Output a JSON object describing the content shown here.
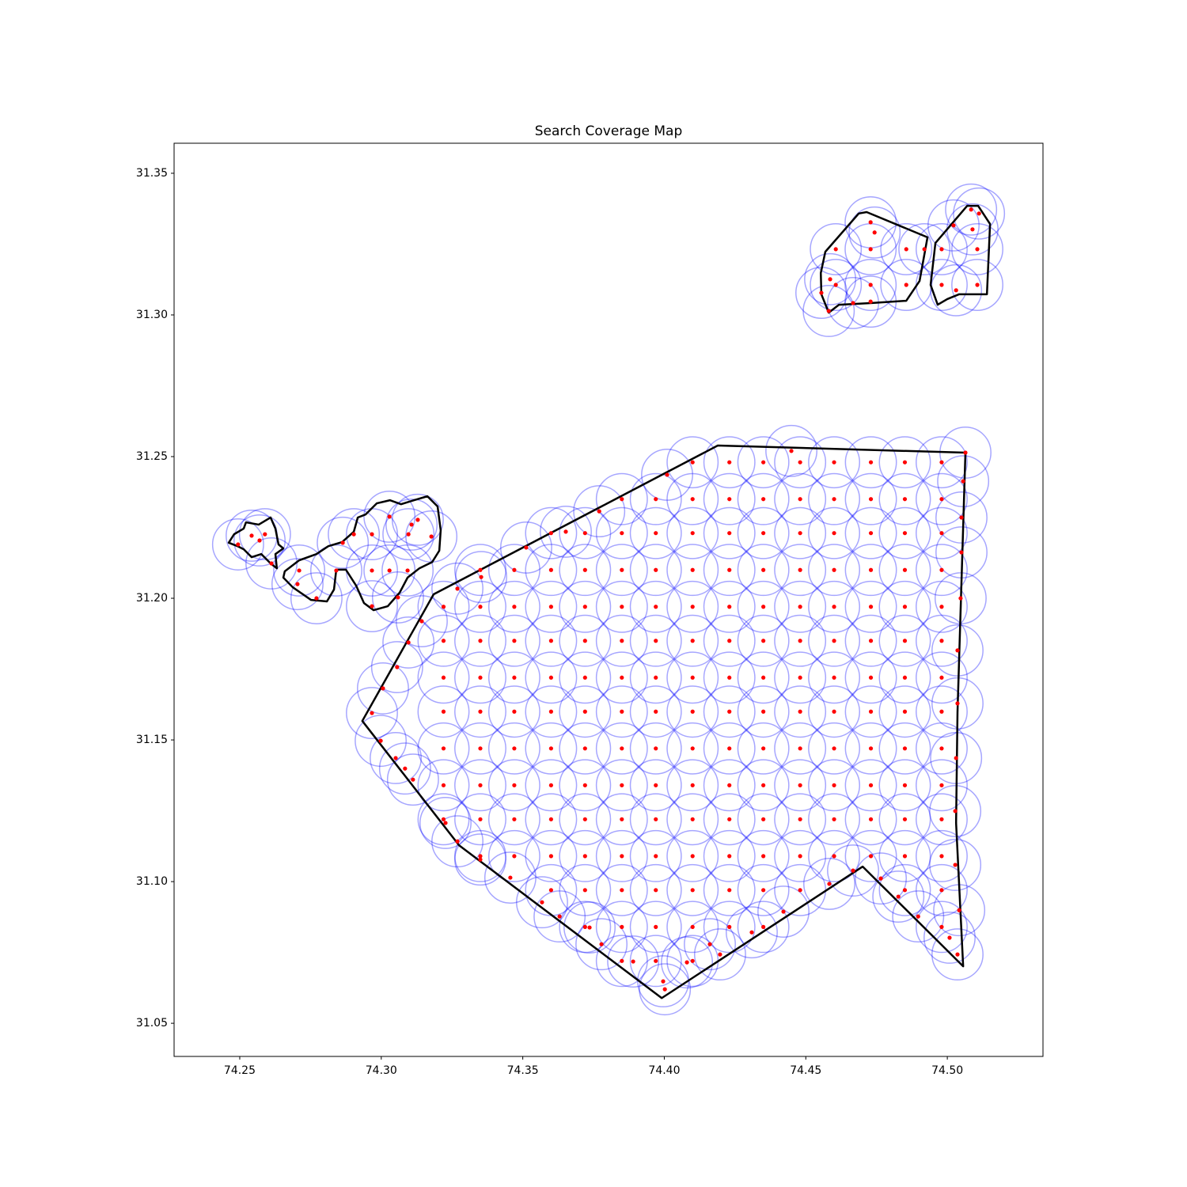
{
  "chart_data": {
    "type": "scatter",
    "title": "Search Coverage Map",
    "xlim": [
      74.2268,
      74.5338
    ],
    "ylim": [
      31.0383,
      31.3606
    ],
    "xticks": [
      74.25,
      {
        "value": 74.3,
        "label": "74.30"
      },
      74.35,
      {
        "value": 74.4,
        "label": "74.40"
      },
      74.45,
      {
        "value": 74.5,
        "label": "74.50"
      }
    ],
    "yticks": [
      31.05,
      {
        "value": 31.1,
        "label": "31.10"
      },
      31.15,
      {
        "value": 31.2,
        "label": "31.20"
      },
      31.25,
      {
        "value": 31.3,
        "label": "31.30"
      },
      31.35
    ],
    "color": "red",
    "coverage_color": "blue",
    "coverage_radius": 0.009,
    "boundary_color": "black",
    "grid": false,
    "boundaries": [
      [
        [
          74.3185,
          31.2014
        ],
        [
          74.4189,
          31.2539
        ],
        [
          74.5064,
          31.2514
        ],
        [
          74.5036,
          31.1598
        ],
        [
          74.5031,
          31.1207
        ],
        [
          74.5056,
          31.0701
        ],
        [
          74.4701,
          31.1053
        ],
        [
          74.3991,
          31.0589
        ],
        [
          74.3275,
          31.1128
        ],
        [
          74.2933,
          31.1567
        ]
      ],
      [
        [
          74.2461,
          31.2196
        ],
        [
          74.248,
          31.2226
        ],
        [
          74.2514,
          31.2246
        ],
        [
          74.2522,
          31.2268
        ],
        [
          74.2567,
          31.226
        ],
        [
          74.2609,
          31.2285
        ],
        [
          74.2626,
          31.2246
        ],
        [
          74.2637,
          31.219
        ],
        [
          74.2654,
          31.2176
        ],
        [
          74.2626,
          31.2156
        ],
        [
          74.2631,
          31.2106
        ],
        [
          74.2609,
          31.2123
        ],
        [
          74.2576,
          31.2156
        ],
        [
          74.2542,
          31.2145
        ],
        [
          74.2514,
          31.2173
        ],
        [
          74.2492,
          31.2184
        ]
      ],
      [
        [
          74.2659,
          31.2095
        ],
        [
          74.271,
          31.2134
        ],
        [
          74.2771,
          31.2156
        ],
        [
          74.2813,
          31.2184
        ],
        [
          74.2861,
          31.2198
        ],
        [
          74.2903,
          31.2235
        ],
        [
          74.2917,
          31.2285
        ],
        [
          74.2945,
          31.2296
        ],
        [
          74.2984,
          31.2335
        ],
        [
          74.3031,
          31.2346
        ],
        [
          74.307,
          31.2332
        ],
        [
          74.3115,
          31.2346
        ],
        [
          74.3163,
          31.236
        ],
        [
          74.3199,
          31.2324
        ],
        [
          74.321,
          31.224
        ],
        [
          74.3205,
          31.2168
        ],
        [
          74.318,
          31.2128
        ],
        [
          74.3135,
          31.2106
        ],
        [
          74.3093,
          31.2073
        ],
        [
          74.3065,
          31.202
        ],
        [
          74.3023,
          31.1972
        ],
        [
          74.2973,
          31.1958
        ],
        [
          74.2939,
          31.1983
        ],
        [
          74.2911,
          31.2045
        ],
        [
          74.2875,
          31.2101
        ],
        [
          74.2841,
          31.2101
        ],
        [
          74.2833,
          31.2031
        ],
        [
          74.2808,
          31.1989
        ],
        [
          74.2752,
          31.1994
        ],
        [
          74.2687,
          31.2039
        ],
        [
          74.2654,
          31.2073
        ]
      ],
      [
        [
          74.4569,
          31.3223
        ],
        [
          74.4687,
          31.3358
        ],
        [
          74.4715,
          31.3363
        ],
        [
          74.493,
          31.3274
        ],
        [
          74.4902,
          31.312
        ],
        [
          74.4855,
          31.305
        ],
        [
          74.4729,
          31.3042
        ],
        [
          74.4617,
          31.3036
        ],
        [
          74.4581,
          31.3008
        ],
        [
          74.4555,
          31.3073
        ],
        [
          74.4553,
          31.3148
        ]
      ],
      [
        [
          74.4958,
          31.3254
        ],
        [
          74.507,
          31.3385
        ],
        [
          74.5109,
          31.3385
        ],
        [
          74.5151,
          31.3321
        ],
        [
          74.514,
          31.3073
        ],
        [
          74.5042,
          31.3073
        ],
        [
          74.5,
          31.3056
        ],
        [
          74.4966,
          31.3036
        ],
        [
          74.4941,
          31.3106
        ]
      ]
    ],
    "points": [
      [
        74.41,
        31.248
      ],
      [
        74.423,
        31.248
      ],
      [
        74.435,
        31.248
      ],
      [
        74.448,
        31.248
      ],
      [
        74.46,
        31.248
      ],
      [
        74.473,
        31.248
      ],
      [
        74.485,
        31.248
      ],
      [
        74.498,
        31.248
      ],
      [
        74.385,
        31.235
      ],
      [
        74.397,
        31.235
      ],
      [
        74.41,
        31.235
      ],
      [
        74.423,
        31.235
      ],
      [
        74.435,
        31.235
      ],
      [
        74.448,
        31.235
      ],
      [
        74.46,
        31.235
      ],
      [
        74.473,
        31.235
      ],
      [
        74.485,
        31.235
      ],
      [
        74.498,
        31.235
      ],
      [
        74.36,
        31.223
      ],
      [
        74.372,
        31.223
      ],
      [
        74.385,
        31.223
      ],
      [
        74.397,
        31.223
      ],
      [
        74.41,
        31.223
      ],
      [
        74.423,
        31.223
      ],
      [
        74.435,
        31.223
      ],
      [
        74.448,
        31.223
      ],
      [
        74.46,
        31.223
      ],
      [
        74.473,
        31.223
      ],
      [
        74.485,
        31.223
      ],
      [
        74.498,
        31.223
      ],
      [
        74.335,
        31.21
      ],
      [
        74.347,
        31.21
      ],
      [
        74.36,
        31.21
      ],
      [
        74.372,
        31.21
      ],
      [
        74.385,
        31.21
      ],
      [
        74.397,
        31.21
      ],
      [
        74.41,
        31.21
      ],
      [
        74.423,
        31.21
      ],
      [
        74.435,
        31.21
      ],
      [
        74.448,
        31.21
      ],
      [
        74.46,
        31.21
      ],
      [
        74.473,
        31.21
      ],
      [
        74.485,
        31.21
      ],
      [
        74.498,
        31.21
      ],
      [
        74.322,
        31.197
      ],
      [
        74.335,
        31.197
      ],
      [
        74.347,
        31.197
      ],
      [
        74.36,
        31.197
      ],
      [
        74.372,
        31.197
      ],
      [
        74.385,
        31.197
      ],
      [
        74.397,
        31.197
      ],
      [
        74.41,
        31.197
      ],
      [
        74.423,
        31.197
      ],
      [
        74.435,
        31.197
      ],
      [
        74.448,
        31.197
      ],
      [
        74.46,
        31.197
      ],
      [
        74.473,
        31.197
      ],
      [
        74.485,
        31.197
      ],
      [
        74.498,
        31.197
      ],
      [
        74.322,
        31.185
      ],
      [
        74.335,
        31.185
      ],
      [
        74.347,
        31.185
      ],
      [
        74.36,
        31.185
      ],
      [
        74.372,
        31.185
      ],
      [
        74.385,
        31.185
      ],
      [
        74.397,
        31.185
      ],
      [
        74.41,
        31.185
      ],
      [
        74.423,
        31.185
      ],
      [
        74.435,
        31.185
      ],
      [
        74.448,
        31.185
      ],
      [
        74.46,
        31.185
      ],
      [
        74.473,
        31.185
      ],
      [
        74.485,
        31.185
      ],
      [
        74.498,
        31.185
      ],
      [
        74.322,
        31.172
      ],
      [
        74.335,
        31.172
      ],
      [
        74.347,
        31.172
      ],
      [
        74.36,
        31.172
      ],
      [
        74.372,
        31.172
      ],
      [
        74.385,
        31.172
      ],
      [
        74.397,
        31.172
      ],
      [
        74.41,
        31.172
      ],
      [
        74.423,
        31.172
      ],
      [
        74.435,
        31.172
      ],
      [
        74.448,
        31.172
      ],
      [
        74.46,
        31.172
      ],
      [
        74.473,
        31.172
      ],
      [
        74.485,
        31.172
      ],
      [
        74.498,
        31.172
      ],
      [
        74.322,
        31.16
      ],
      [
        74.335,
        31.16
      ],
      [
        74.347,
        31.16
      ],
      [
        74.36,
        31.16
      ],
      [
        74.372,
        31.16
      ],
      [
        74.385,
        31.16
      ],
      [
        74.397,
        31.16
      ],
      [
        74.41,
        31.16
      ],
      [
        74.423,
        31.16
      ],
      [
        74.435,
        31.16
      ],
      [
        74.448,
        31.16
      ],
      [
        74.46,
        31.16
      ],
      [
        74.473,
        31.16
      ],
      [
        74.485,
        31.16
      ],
      [
        74.498,
        31.16
      ],
      [
        74.322,
        31.147
      ],
      [
        74.335,
        31.147
      ],
      [
        74.347,
        31.147
      ],
      [
        74.36,
        31.147
      ],
      [
        74.372,
        31.147
      ],
      [
        74.385,
        31.147
      ],
      [
        74.397,
        31.147
      ],
      [
        74.41,
        31.147
      ],
      [
        74.423,
        31.147
      ],
      [
        74.435,
        31.147
      ],
      [
        74.448,
        31.147
      ],
      [
        74.46,
        31.147
      ],
      [
        74.473,
        31.147
      ],
      [
        74.485,
        31.147
      ],
      [
        74.498,
        31.147
      ],
      [
        74.322,
        31.134
      ],
      [
        74.335,
        31.134
      ],
      [
        74.347,
        31.134
      ],
      [
        74.36,
        31.134
      ],
      [
        74.372,
        31.134
      ],
      [
        74.385,
        31.134
      ],
      [
        74.397,
        31.134
      ],
      [
        74.41,
        31.134
      ],
      [
        74.423,
        31.134
      ],
      [
        74.435,
        31.134
      ],
      [
        74.448,
        31.134
      ],
      [
        74.46,
        31.134
      ],
      [
        74.473,
        31.134
      ],
      [
        74.485,
        31.134
      ],
      [
        74.498,
        31.134
      ],
      [
        74.322,
        31.122
      ],
      [
        74.335,
        31.122
      ],
      [
        74.347,
        31.122
      ],
      [
        74.36,
        31.122
      ],
      [
        74.372,
        31.122
      ],
      [
        74.385,
        31.122
      ],
      [
        74.397,
        31.122
      ],
      [
        74.41,
        31.122
      ],
      [
        74.423,
        31.122
      ],
      [
        74.435,
        31.122
      ],
      [
        74.448,
        31.122
      ],
      [
        74.46,
        31.122
      ],
      [
        74.473,
        31.122
      ],
      [
        74.485,
        31.122
      ],
      [
        74.498,
        31.122
      ],
      [
        74.335,
        31.109
      ],
      [
        74.347,
        31.109
      ],
      [
        74.36,
        31.109
      ],
      [
        74.372,
        31.109
      ],
      [
        74.385,
        31.109
      ],
      [
        74.397,
        31.109
      ],
      [
        74.41,
        31.109
      ],
      [
        74.423,
        31.109
      ],
      [
        74.435,
        31.109
      ],
      [
        74.448,
        31.109
      ],
      [
        74.46,
        31.109
      ],
      [
        74.473,
        31.109
      ],
      [
        74.485,
        31.109
      ],
      [
        74.498,
        31.109
      ],
      [
        74.36,
        31.097
      ],
      [
        74.372,
        31.097
      ],
      [
        74.385,
        31.097
      ],
      [
        74.397,
        31.097
      ],
      [
        74.41,
        31.097
      ],
      [
        74.423,
        31.097
      ],
      [
        74.435,
        31.097
      ],
      [
        74.448,
        31.097
      ],
      [
        74.485,
        31.097
      ],
      [
        74.498,
        31.097
      ],
      [
        74.372,
        31.084
      ],
      [
        74.385,
        31.084
      ],
      [
        74.397,
        31.084
      ],
      [
        74.41,
        31.084
      ],
      [
        74.423,
        31.084
      ],
      [
        74.435,
        31.084
      ],
      [
        74.498,
        31.084
      ],
      [
        74.385,
        31.072
      ],
      [
        74.397,
        31.072
      ],
      [
        74.41,
        31.072
      ],
      [
        74.3143,
        31.1919
      ],
      [
        74.3096,
        31.1844
      ],
      [
        74.3056,
        31.1757
      ],
      [
        74.3006,
        31.1682
      ],
      [
        74.2967,
        31.1595
      ],
      [
        74.2998,
        31.1497
      ],
      [
        74.3051,
        31.1436
      ],
      [
        74.3084,
        31.1399
      ],
      [
        74.3112,
        31.136
      ],
      [
        74.3227,
        31.1207
      ],
      [
        74.3269,
        31.1142
      ],
      [
        74.335,
        31.1078
      ],
      [
        74.3456,
        31.1014
      ],
      [
        74.3568,
        31.0927
      ],
      [
        74.363,
        31.0877
      ],
      [
        74.3736,
        31.0838
      ],
      [
        74.3778,
        31.0779
      ],
      [
        74.389,
        31.0718
      ],
      [
        74.3996,
        31.0648
      ],
      [
        74.4002,
        31.062
      ],
      [
        74.408,
        31.0715
      ],
      [
        74.4161,
        31.0779
      ],
      [
        74.4197,
        31.0743
      ],
      [
        74.4309,
        31.0821
      ],
      [
        74.4421,
        31.0894
      ],
      [
        74.4583,
        31.0992
      ],
      [
        74.4667,
        31.1039
      ],
      [
        74.4765,
        31.1011
      ],
      [
        74.4827,
        31.0947
      ],
      [
        74.4897,
        31.0877
      ],
      [
        74.5008,
        31.0802
      ],
      [
        74.5036,
        31.0743
      ],
      [
        74.5042,
        31.0899
      ],
      [
        74.5028,
        31.1059
      ],
      [
        74.5028,
        31.1249
      ],
      [
        74.5031,
        31.1436
      ],
      [
        74.5036,
        31.1629
      ],
      [
        74.5036,
        31.1816
      ],
      [
        74.5047,
        31.2
      ],
      [
        74.505,
        31.2162
      ],
      [
        74.505,
        31.2285
      ],
      [
        74.5056,
        31.2413
      ],
      [
        74.5064,
        31.2514
      ],
      [
        74.4449,
        31.252
      ],
      [
        74.401,
        31.2436
      ],
      [
        74.377,
        31.2307
      ],
      [
        74.3652,
        31.2235
      ],
      [
        74.3512,
        31.2179
      ],
      [
        74.3353,
        31.2075
      ],
      [
        74.3269,
        31.2034
      ],
      [
        74.2494,
        31.219
      ],
      [
        74.2542,
        31.2221
      ],
      [
        74.2589,
        31.2226
      ],
      [
        74.257,
        31.2204
      ],
      [
        74.2612,
        31.2123
      ],
      [
        74.271,
        31.2098
      ],
      [
        74.2704,
        31.205
      ],
      [
        74.2771,
        31.2
      ],
      [
        74.2841,
        31.2098
      ],
      [
        74.2864,
        31.2196
      ],
      [
        74.2903,
        31.2226
      ],
      [
        74.2967,
        31.2226
      ],
      [
        74.2967,
        31.2098
      ],
      [
        74.3029,
        31.2288
      ],
      [
        74.3107,
        31.226
      ],
      [
        74.3129,
        31.2277
      ],
      [
        74.3096,
        31.2226
      ],
      [
        74.3093,
        31.2098
      ],
      [
        74.3029,
        31.2098
      ],
      [
        74.3177,
        31.2218
      ],
      [
        74.3059,
        31.2003
      ],
      [
        74.2967,
        31.1972
      ],
      [
        74.4729,
        31.3327
      ],
      [
        74.4743,
        31.3291
      ],
      [
        74.4606,
        31.3232
      ],
      [
        74.4729,
        31.3232
      ],
      [
        74.4855,
        31.3232
      ],
      [
        74.4919,
        31.3232
      ],
      [
        74.498,
        31.3232
      ],
      [
        74.5106,
        31.3232
      ],
      [
        74.5022,
        31.3316
      ],
      [
        74.5084,
        31.3372
      ],
      [
        74.5112,
        31.3358
      ],
      [
        74.5089,
        31.3302
      ],
      [
        74.4586,
        31.3126
      ],
      [
        74.4606,
        31.3106
      ],
      [
        74.4729,
        31.3106
      ],
      [
        74.4855,
        31.3106
      ],
      [
        74.498,
        31.3106
      ],
      [
        74.5031,
        31.3087
      ],
      [
        74.5106,
        31.3106
      ],
      [
        74.4555,
        31.3078
      ],
      [
        74.4667,
        31.3042
      ],
      [
        74.4729,
        31.3047
      ],
      [
        74.4581,
        31.3014
      ]
    ]
  }
}
